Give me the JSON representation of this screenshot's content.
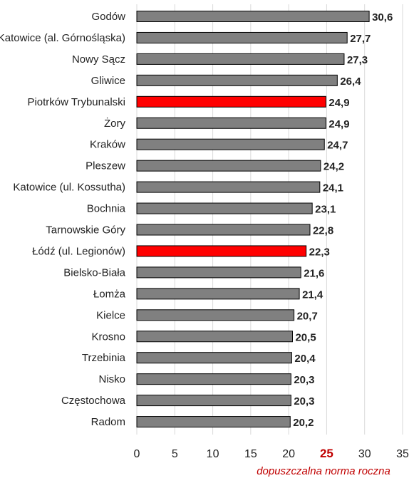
{
  "chart_data": {
    "type": "bar",
    "orientation": "horizontal",
    "categories": [
      "Godów",
      "Katowice (al. Górnośląska)",
      "Nowy Sącz",
      "Gliwice",
      "Piotrków Trybunalski",
      "Żory",
      "Kraków",
      "Pleszew",
      "Katowice (ul. Kossutha)",
      "Bochnia",
      "Tarnowskie Góry",
      "Łódź (ul. Legionów)",
      "Bielsko-Biała",
      "Łomża",
      "Kielce",
      "Krosno",
      "Trzebinia",
      "Nisko",
      "Częstochowa",
      "Radom"
    ],
    "values": [
      30.6,
      27.7,
      27.3,
      26.4,
      24.9,
      24.9,
      24.7,
      24.2,
      24.1,
      23.1,
      22.8,
      22.3,
      21.6,
      21.4,
      20.7,
      20.5,
      20.4,
      20.3,
      20.3,
      20.2
    ],
    "value_labels": [
      "30,6",
      "27,7",
      "27,3",
      "26,4",
      "24,9",
      "24,9",
      "24,7",
      "24,2",
      "24,1",
      "23,1",
      "22,8",
      "22,3",
      "21,6",
      "21,4",
      "20,7",
      "20,5",
      "20,4",
      "20,3",
      "20,3",
      "20,2"
    ],
    "highlighted": [
      false,
      false,
      false,
      false,
      true,
      false,
      false,
      false,
      false,
      false,
      false,
      true,
      false,
      false,
      false,
      false,
      false,
      false,
      false,
      false
    ],
    "xlim": [
      0,
      35
    ],
    "xticks": [
      "0",
      "5",
      "10",
      "15",
      "20",
      "25",
      "30",
      "35"
    ],
    "xtick_values": [
      0,
      5,
      10,
      15,
      20,
      25,
      30,
      35
    ],
    "highlight_tick_index": 5,
    "annotation": "dopuszczalna norma roczna",
    "grid": "vertical",
    "colors": {
      "bar": "#808080",
      "bar_highlight": "#ff0000",
      "bar_outline": "#000000",
      "grid": "#d9d9d9",
      "text": "#222222",
      "limit_text": "#c00000"
    }
  }
}
